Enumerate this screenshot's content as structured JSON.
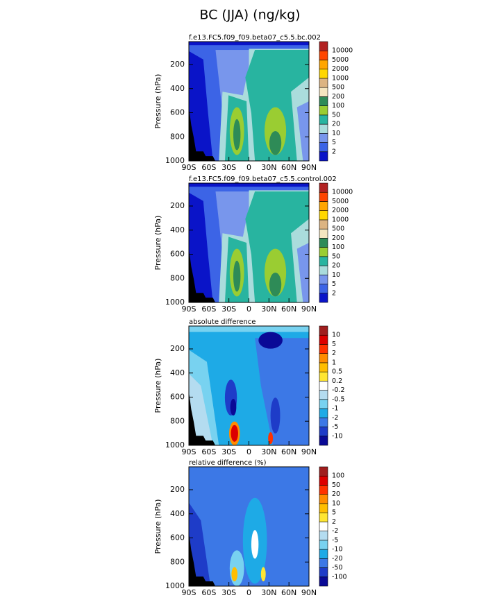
{
  "title": "BC (JJA) (ng/kg)",
  "chart_data": [
    {
      "type": "contour",
      "title": "f.e13.FC5.f09_f09.beta07_c5.5.bc.002",
      "ylabel": "Pressure (hPa)",
      "xlim": [
        -90,
        90
      ],
      "xticks": [
        {
          "value": -90,
          "label": "90S"
        },
        {
          "value": -60,
          "label": "60S"
        },
        {
          "value": -30,
          "label": "30S"
        },
        0,
        {
          "value": 30,
          "label": "30N"
        },
        {
          "value": 60,
          "label": "60N"
        },
        {
          "value": 90,
          "label": "90N"
        }
      ],
      "ylim": [
        1000,
        10
      ],
      "yticks": [
        1000,
        800,
        600,
        400,
        200
      ],
      "levels": [
        2,
        5,
        10,
        20,
        50,
        100,
        200,
        500,
        1000,
        2000,
        5000,
        10000
      ],
      "colors": [
        "#0a14c8",
        "#3c64e6",
        "#7896ec",
        "#aadcdc",
        "#28b4a0",
        "#9acd32",
        "#2e8b57",
        "#f5e6c0",
        "#dcb482",
        "#ffd700",
        "#ffa500",
        "#ff4500",
        "#b22222"
      ]
    },
    {
      "type": "contour",
      "title": "f.e13.FC5.f09_f09.beta07_c5.5.control.002",
      "ylabel": "Pressure (hPa)",
      "xlim": [
        -90,
        90
      ],
      "xticks": [
        {
          "value": -90,
          "label": "90S"
        },
        {
          "value": -60,
          "label": "60S"
        },
        {
          "value": -30,
          "label": "30S"
        },
        0,
        {
          "value": 30,
          "label": "30N"
        },
        {
          "value": 60,
          "label": "60N"
        },
        {
          "value": 90,
          "label": "90N"
        }
      ],
      "ylim": [
        1000,
        10
      ],
      "yticks": [
        1000,
        800,
        600,
        400,
        200
      ],
      "levels": [
        2,
        5,
        10,
        20,
        50,
        100,
        200,
        500,
        1000,
        2000,
        5000,
        10000
      ],
      "colors": [
        "#0a14c8",
        "#3c64e6",
        "#7896ec",
        "#aadcdc",
        "#28b4a0",
        "#9acd32",
        "#2e8b57",
        "#f5e6c0",
        "#dcb482",
        "#ffd700",
        "#ffa500",
        "#ff4500",
        "#b22222"
      ]
    },
    {
      "type": "contour",
      "title": "absolute difference",
      "ylabel": "Pressure (hPa)",
      "xlim": [
        -90,
        90
      ],
      "xticks": [
        {
          "value": -90,
          "label": "90S"
        },
        {
          "value": -60,
          "label": "60S"
        },
        {
          "value": -30,
          "label": "30S"
        },
        0,
        {
          "value": 30,
          "label": "30N"
        },
        {
          "value": 60,
          "label": "60N"
        },
        {
          "value": 90,
          "label": "90N"
        }
      ],
      "ylim": [
        1000,
        10
      ],
      "yticks": [
        1000,
        800,
        600,
        400,
        200
      ],
      "levels": [
        -10,
        -5,
        -2,
        -1,
        -0.5,
        -0.2,
        0.2,
        0.5,
        1,
        2,
        5,
        10
      ],
      "colors": [
        "#0a0a96",
        "#1e3cc8",
        "#3c78e6",
        "#1eaae6",
        "#78d2f0",
        "#b4dcf0",
        "#ffffff",
        "#ffe632",
        "#ffbe00",
        "#ff8c00",
        "#ff3200",
        "#dc0000",
        "#a01e1e"
      ]
    },
    {
      "type": "contour",
      "title": "relative difference (%)",
      "ylabel": "Pressure (hPa)",
      "xlim": [
        -90,
        90
      ],
      "xticks": [
        {
          "value": -90,
          "label": "90S"
        },
        {
          "value": -60,
          "label": "60S"
        },
        {
          "value": -30,
          "label": "30S"
        },
        0,
        {
          "value": 30,
          "label": "30N"
        },
        {
          "value": 60,
          "label": "60N"
        },
        {
          "value": 90,
          "label": "90N"
        }
      ],
      "ylim": [
        1000,
        10
      ],
      "yticks": [
        1000,
        800,
        600,
        400,
        200
      ],
      "levels": [
        -100,
        -50,
        -20,
        -10,
        -5,
        -2,
        2,
        5,
        10,
        20,
        50,
        100
      ],
      "colors": [
        "#0a0a96",
        "#1e3cc8",
        "#3c78e6",
        "#1eaae6",
        "#78d2f0",
        "#b4dcf0",
        "#ffffff",
        "#ffe632",
        "#ffbe00",
        "#ff8c00",
        "#ff3200",
        "#dc0000",
        "#a01e1e"
      ]
    }
  ]
}
